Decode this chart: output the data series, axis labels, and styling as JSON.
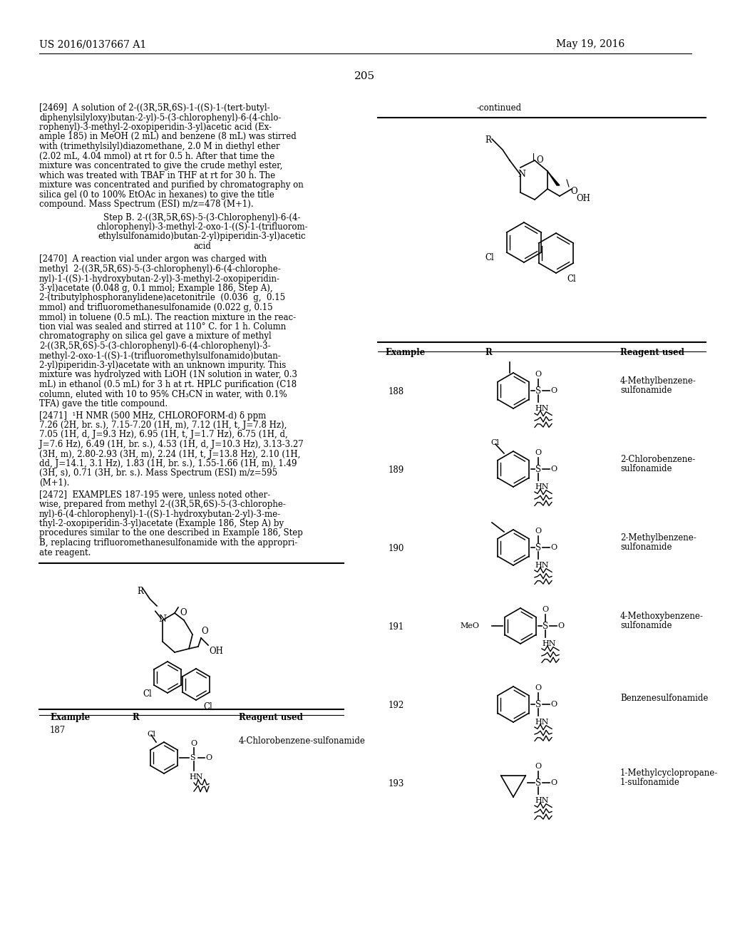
{
  "page_number": "205",
  "patent_number": "US 2016/0137667 A1",
  "patent_date": "May 19, 2016",
  "background_color": "#ffffff",
  "text_color": "#000000",
  "continued_label": "-continued",
  "header_fontsize": 10,
  "body_fontsize": 8.5,
  "left_text_blocks": [
    {
      "tag": "[2469]",
      "text": "A solution of 2-((3R,5R,6S)-1-((S)-1-(tert-butyl-diphenylsilyloxy)butan-2-yl)-5-(3-chlorophenyl)-6-(4-chlorophenyl)-3-methyl-2-oxopiperidin-3-yl)acetic acid (Example 185) in MeOH (2 mL) and benzene (8 mL) was stirred with (trimethylsilyl)diazomethane, 2.0 M in diethyl ether (2.02 mL, 4.04 mmol) at rt for 0.5 h. After that time the mixture was concentrated to give the crude methyl ester, which was treated with TBAF in THF at rt for 30 h. The mixture was concentrated and purified by chromatography on silica gel (0 to 100% EtOAc in hexanes) to give the title compound. Mass Spectrum (ESI) m/z=478 (M+1)."
    },
    {
      "tag": "Step B",
      "text": "Step B. 2-((3R,5R,6S)-5-(3-Chlorophenyl)-6-(4-chlorophenyl)-3-methyl-2-oxo-1-((S)-1-(trifluoromethylsulfonamido)butan-2-yl)piperidin-3-yl)acetic acid"
    },
    {
      "tag": "[2470]",
      "text": "A reaction vial under argon was charged with methyl 2-((3R,5R,6S)-5-(3-chlorophenyl)-6-(4-chlorophenyl)-1-((S)-1-hydroxybutan-2-yl)-3-methyl-2-oxopiperidin-3-yl)acetate (0.048 g, 0.1 mmol; Example 186, Step A), 2-(tributylphosphoranylidene)acetonitrile (0.036 g, 0.15 mmol) and trifluoromethanesulfonamide (0.022 g, 0.15 mmol) in toluene (0.5 mL). The reaction mixture in the reaction vial was sealed and stirred at 110° C. for 1 h. Column chromatography on silica gel gave a mixture of methyl 2-((3R,5R,6S)-5-(3-chlorophenyl)-6-(4-chlorophenyl)-3-methyl-2-oxo-1-((S)-1-(trifluoromethylsulfonamido)butan-2-yl)piperidin-3-yl)acetate with an unknown impurity. This mixture was hydrolyzed with LiOH (1N solution in water, 0.3 mL) in ethanol (0.5 mL) for 3 h at rt. HPLC purification (C18 column, eluted with 10 to 95% CH₃CN in water, with 0.1% TFA) gave the title compound."
    },
    {
      "tag": "[2471]",
      "text": "¹H NMR (500 MHz, CHLOROFORM-d) δ ppm 7.26 (2H, br. s.), 7.15-7.20 (1H, m), 7.12 (1H, t, J=7.8 Hz), 7.05 (1H, d, J=9.3 Hz), 6.95 (1H, t, J=1.7 Hz), 6.75 (1H, d, J=7.6 Hz), 6.49 (1H, br. s.), 4.53 (1H, d, J=10.3 Hz), 3.13-3.27 (3H, m), 2.80-2.93 (3H, m), 2.24 (1H, t, J=13.8 Hz), 2.10 (1H, dd, J=14.1, 3.1 Hz), 1.83 (1H, br. s.), 1.55-1.66 (1H, m), 1.49 (3H, s), 0.71 (3H, br. s.). Mass Spectrum (ESI) m/z=595 (M+1)."
    },
    {
      "tag": "[2472]",
      "text": "EXAMPLES 187-195 were, unless noted otherwise, prepared from methyl 2-((3R,5R,6S)-5-(3-chlorophenyl)-6-(4-chlorophenyl)-1-((S)-1-hydroxybutan-2-yl)-3-methyl-2-oxopiperidin-3-yl)acetate (Example 186, Step A) by procedures similar to the one described in Example 186, Step B, replacing trifluoromethanesulfonamide with the appropriate reagent."
    }
  ],
  "table_header": [
    "Example",
    "R",
    "Reagent used"
  ],
  "examples": [
    {
      "num": "188",
      "reagent": "4-Methylbenzene-sulfonamide"
    },
    {
      "num": "189",
      "reagent": "2-Chlorobenzene-sulfonamide"
    },
    {
      "num": "190",
      "reagent": "2-Methylbenzene-sulfonamide"
    },
    {
      "num": "191",
      "reagent": "4-Methoxybenzene-sulfonamide"
    },
    {
      "num": "192",
      "reagent": "Benzenesulfonamide"
    },
    {
      "num": "193",
      "reagent": "1-Methylcyclopropane-1-sulfonamide"
    }
  ],
  "left_example": "187",
  "left_reagent": "4-Chlorobenzene-sulfonamide"
}
